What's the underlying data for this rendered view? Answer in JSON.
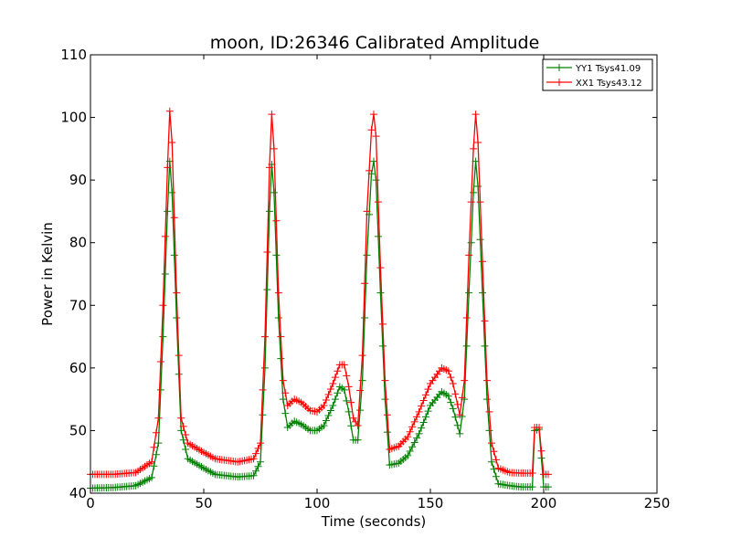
{
  "chart_data": {
    "type": "line",
    "title": "moon, ID:26346 Calibrated Amplitude",
    "xlabel": "Time (seconds)",
    "ylabel": "Power in Kelvin",
    "xlim": [
      0,
      250
    ],
    "ylim": [
      40,
      110
    ],
    "xticks": [
      "0",
      "50",
      "100",
      "150",
      "200",
      "250"
    ],
    "yticks": [
      "40",
      "50",
      "60",
      "70",
      "80",
      "90",
      "100",
      "110"
    ],
    "grid": false,
    "legend_position": "top-right",
    "marker": "+",
    "series": [
      {
        "name": "YY1 Tsys41.09",
        "color": "#008000",
        "points": [
          [
            0,
            40.8
          ],
          [
            10,
            40.9
          ],
          [
            20,
            41.2
          ],
          [
            27,
            42.5
          ],
          [
            30,
            48
          ],
          [
            32,
            65
          ],
          [
            34,
            85
          ],
          [
            35,
            93
          ],
          [
            36,
            88
          ],
          [
            38,
            68
          ],
          [
            40,
            50
          ],
          [
            43,
            45.5
          ],
          [
            50,
            44
          ],
          [
            55,
            43
          ],
          [
            65,
            42.6
          ],
          [
            72,
            42.8
          ],
          [
            75,
            45
          ],
          [
            77,
            60
          ],
          [
            79,
            85
          ],
          [
            80,
            92.5
          ],
          [
            81,
            88
          ],
          [
            83,
            68
          ],
          [
            85,
            55
          ],
          [
            87,
            50.5
          ],
          [
            90,
            51.5
          ],
          [
            93,
            51
          ],
          [
            97,
            50
          ],
          [
            100,
            50
          ],
          [
            103,
            50.8
          ],
          [
            107,
            54
          ],
          [
            110,
            57
          ],
          [
            112,
            56.5
          ],
          [
            114,
            53
          ],
          [
            116,
            48.5
          ],
          [
            118,
            48.5
          ],
          [
            120,
            58
          ],
          [
            122,
            78
          ],
          [
            124,
            91
          ],
          [
            125,
            93
          ],
          [
            126,
            90
          ],
          [
            128,
            72
          ],
          [
            130,
            55
          ],
          [
            132,
            44.5
          ],
          [
            136,
            44.8
          ],
          [
            140,
            46
          ],
          [
            145,
            49.5
          ],
          [
            150,
            54
          ],
          [
            155,
            56.2
          ],
          [
            158,
            55.5
          ],
          [
            160,
            53.5
          ],
          [
            163,
            49.5
          ],
          [
            165,
            55
          ],
          [
            167,
            72
          ],
          [
            169,
            88
          ],
          [
            170,
            93
          ],
          [
            171,
            89
          ],
          [
            173,
            72
          ],
          [
            175,
            55
          ],
          [
            177,
            45
          ],
          [
            180,
            41.5
          ],
          [
            185,
            41.2
          ],
          [
            190,
            41
          ],
          [
            195,
            41
          ],
          [
            196,
            50
          ],
          [
            198,
            50.2
          ],
          [
            200,
            41
          ],
          [
            202,
            41
          ]
        ]
      },
      {
        "name": "XX1 Tsys43.12",
        "color": "#ff0000",
        "points": [
          [
            0,
            43
          ],
          [
            10,
            43
          ],
          [
            20,
            43.3
          ],
          [
            27,
            45
          ],
          [
            30,
            52
          ],
          [
            32,
            70
          ],
          [
            34,
            92
          ],
          [
            35,
            101
          ],
          [
            36,
            96
          ],
          [
            38,
            72
          ],
          [
            40,
            52
          ],
          [
            43,
            48
          ],
          [
            50,
            46.5
          ],
          [
            55,
            45.5
          ],
          [
            65,
            45
          ],
          [
            72,
            45.5
          ],
          [
            75,
            48
          ],
          [
            77,
            65
          ],
          [
            79,
            92
          ],
          [
            80,
            100.5
          ],
          [
            81,
            95
          ],
          [
            83,
            72
          ],
          [
            85,
            58
          ],
          [
            87,
            54
          ],
          [
            90,
            55
          ],
          [
            93,
            54.5
          ],
          [
            97,
            53.2
          ],
          [
            100,
            53
          ],
          [
            103,
            54
          ],
          [
            107,
            57.5
          ],
          [
            110,
            60.5
          ],
          [
            112,
            60.5
          ],
          [
            114,
            57
          ],
          [
            116,
            52
          ],
          [
            118,
            50.8
          ],
          [
            120,
            62
          ],
          [
            122,
            85
          ],
          [
            124,
            98
          ],
          [
            125,
            100.5
          ],
          [
            126,
            97
          ],
          [
            128,
            76
          ],
          [
            130,
            58
          ],
          [
            132,
            47
          ],
          [
            136,
            47.5
          ],
          [
            140,
            49
          ],
          [
            145,
            53
          ],
          [
            150,
            57.5
          ],
          [
            155,
            60
          ],
          [
            158,
            59.5
          ],
          [
            160,
            57.5
          ],
          [
            163,
            52.5
          ],
          [
            165,
            58
          ],
          [
            167,
            78
          ],
          [
            169,
            95
          ],
          [
            170,
            100.5
          ],
          [
            171,
            96
          ],
          [
            173,
            77
          ],
          [
            175,
            58
          ],
          [
            177,
            48
          ],
          [
            180,
            44
          ],
          [
            185,
            43.3
          ],
          [
            190,
            43.2
          ],
          [
            195,
            43.2
          ],
          [
            196,
            50.5
          ],
          [
            198,
            50.5
          ],
          [
            200,
            43
          ],
          [
            202,
            43
          ]
        ]
      }
    ]
  }
}
